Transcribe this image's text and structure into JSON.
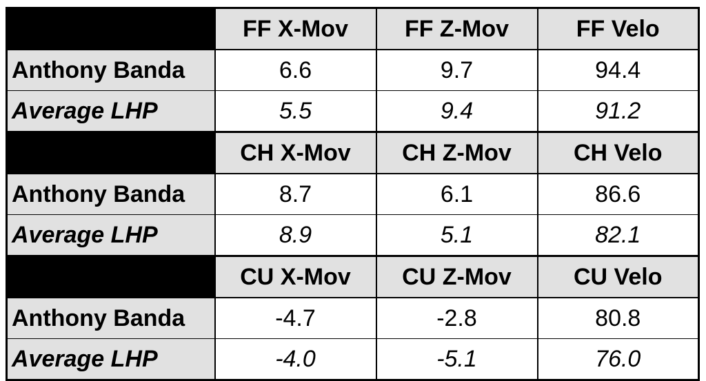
{
  "chart_data": {
    "type": "table",
    "row_labels": [
      "Anthony Banda",
      "Average LHP"
    ],
    "sections": [
      {
        "pitch": "FF",
        "columns": [
          "FF X-Mov",
          "FF Z-Mov",
          "FF Velo"
        ],
        "rows": [
          {
            "label": "Anthony Banda",
            "values": [
              "6.6",
              "9.7",
              "94.4"
            ]
          },
          {
            "label": "Average LHP",
            "values": [
              "5.5",
              "9.4",
              "91.2"
            ]
          }
        ]
      },
      {
        "pitch": "CH",
        "columns": [
          "CH X-Mov",
          "CH Z-Mov",
          "CH Velo"
        ],
        "rows": [
          {
            "label": "Anthony Banda",
            "values": [
              "8.7",
              "6.1",
              "86.6"
            ]
          },
          {
            "label": "Average LHP",
            "values": [
              "8.9",
              "5.1",
              "82.1"
            ]
          }
        ]
      },
      {
        "pitch": "CU",
        "columns": [
          "CU X-Mov",
          "CU Z-Mov",
          "CU Velo"
        ],
        "rows": [
          {
            "label": "Anthony Banda",
            "values": [
              "-4.7",
              "-2.8",
              "80.8"
            ]
          },
          {
            "label": "Average LHP",
            "values": [
              "-4.0",
              "-5.1",
              "76.0"
            ]
          }
        ]
      }
    ],
    "colors": {
      "header_fill": "#e1e1e1",
      "corner_fill": "#000000",
      "cell_fill": "#ffffff",
      "border": "#000000"
    }
  }
}
